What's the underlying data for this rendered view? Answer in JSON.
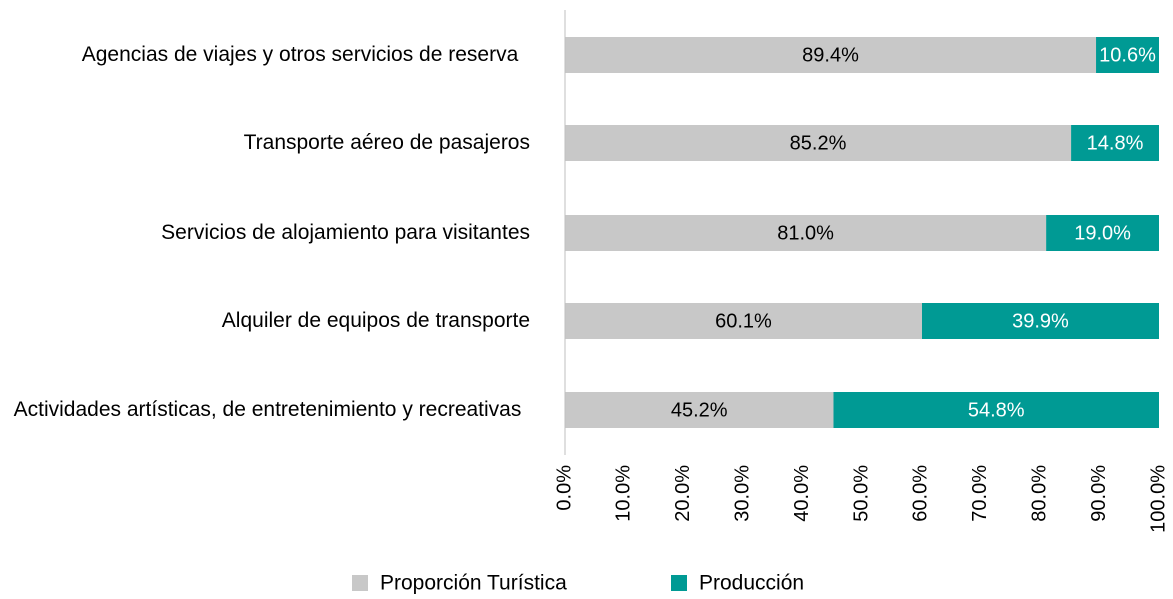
{
  "chart_data": {
    "type": "stacked-barh",
    "categories": [
      "Agencias de viajes y otros servicios de reserva",
      "Transporte aéreo de pasajeros",
      "Servicios de alojamiento para visitantes",
      "Alquiler de equipos de transporte",
      "Actividades artísticas, de entretenimiento y recreativas"
    ],
    "series": [
      {
        "name": "Proporción Turística",
        "color": "#c8c8c8",
        "label_color": "#000000",
        "values": [
          89.4,
          85.2,
          81.0,
          60.1,
          45.2
        ],
        "value_labels": [
          "89.4%",
          "85.2%",
          "81.0%",
          "60.1%",
          "45.2%"
        ]
      },
      {
        "name": "Producción",
        "color": "#009a94",
        "label_color": "#ffffff",
        "values": [
          10.6,
          14.8,
          19.0,
          39.9,
          54.8
        ],
        "value_labels": [
          "10.6%",
          "14.8%",
          "19.0%",
          "39.9%",
          "54.8%"
        ]
      }
    ],
    "xlim": [
      0,
      100
    ],
    "xticks": [
      {
        "value": 0,
        "label": "0.0%"
      },
      {
        "value": 10,
        "label": "10.0%"
      },
      {
        "value": 20,
        "label": "20.0%"
      },
      {
        "value": 30,
        "label": "30.0%"
      },
      {
        "value": 40,
        "label": "40.0%"
      },
      {
        "value": 50,
        "label": "50.0%"
      },
      {
        "value": 60,
        "label": "60.0%"
      },
      {
        "value": 70,
        "label": "70.0%"
      },
      {
        "value": 80,
        "label": "80.0%"
      },
      {
        "value": 90,
        "label": "90.0%"
      },
      {
        "value": 100,
        "label": "100.0%"
      }
    ],
    "legend": "bottom"
  }
}
